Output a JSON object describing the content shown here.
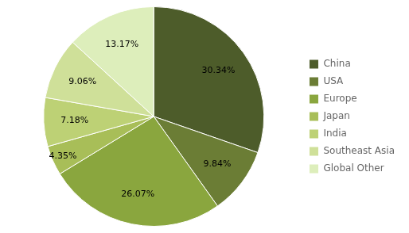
{
  "chart_data": {
    "type": "pie",
    "categories": [
      "China",
      "USA",
      "Europe",
      "Japan",
      "India",
      "Southeast Asia",
      "Global Other"
    ],
    "values": [
      30.34,
      9.84,
      26.07,
      4.35,
      7.18,
      9.06,
      13.17
    ],
    "value_labels": [
      "30.34%",
      "9.84%",
      "26.07%",
      "4.35%",
      "7.18%",
      "9.06%",
      "13.17%"
    ],
    "colors": [
      "#4d5c2a",
      "#6b7d35",
      "#8aa63e",
      "#a8be58",
      "#bdd175",
      "#cfe099",
      "#ddeebb"
    ],
    "data_labels": true,
    "legend": "right"
  }
}
